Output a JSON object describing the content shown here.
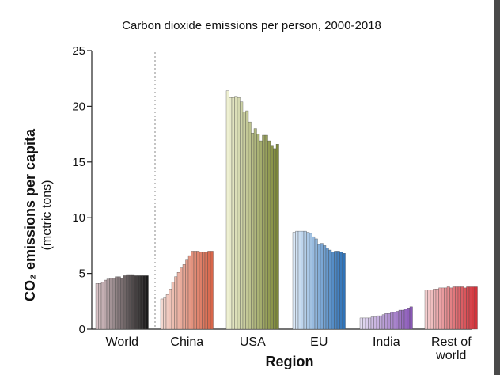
{
  "chart_data": {
    "type": "bar",
    "title": "Carbon dioxide emissions per person, 2000-2018",
    "xlabel": "Region",
    "ylabel": "CO₂ emissions per capita",
    "ylabel_sub": "(metric tons)",
    "ylim": [
      0,
      25
    ],
    "yticks": [
      "0",
      "5",
      "10",
      "15",
      "20",
      "25"
    ],
    "years": [
      2000,
      2001,
      2002,
      2003,
      2004,
      2005,
      2006,
      2007,
      2008,
      2009,
      2010,
      2011,
      2012,
      2013,
      2014,
      2015,
      2016,
      2017,
      2018
    ],
    "groups": [
      {
        "name": "World",
        "label_lines": [
          "World"
        ],
        "color_start": "#d9c2c6",
        "color_end": "#1a1a1a",
        "values": [
          4.1,
          4.1,
          4.2,
          4.4,
          4.5,
          4.6,
          4.6,
          4.7,
          4.7,
          4.6,
          4.8,
          4.9,
          4.9,
          4.9,
          4.8,
          4.8,
          4.8,
          4.8,
          4.8
        ]
      },
      {
        "name": "China",
        "label_lines": [
          "China"
        ],
        "color_start": "#f3d7cf",
        "color_end": "#d8664a",
        "values": [
          2.7,
          2.8,
          3.1,
          3.6,
          4.2,
          4.7,
          5.1,
          5.5,
          5.8,
          6.2,
          6.6,
          7.0,
          7.0,
          7.0,
          6.9,
          6.9,
          6.9,
          7.0,
          7.0
        ]
      },
      {
        "name": "USA",
        "label_lines": [
          "USA"
        ],
        "color_start": "#eef0d2",
        "color_end": "#7f8a3a",
        "values": [
          21.4,
          20.8,
          20.8,
          20.9,
          20.8,
          20.4,
          19.5,
          19.6,
          18.6,
          17.6,
          18.0,
          17.5,
          16.9,
          17.4,
          17.4,
          16.9,
          16.5,
          16.2,
          16.6
        ]
      },
      {
        "name": "EU",
        "label_lines": [
          "EU"
        ],
        "color_start": "#dbe9f7",
        "color_end": "#2f73b9",
        "values": [
          8.7,
          8.8,
          8.8,
          8.8,
          8.8,
          8.7,
          8.6,
          8.3,
          8.1,
          7.6,
          7.7,
          7.5,
          7.3,
          7.1,
          6.9,
          7.0,
          7.0,
          6.9,
          6.8
        ]
      },
      {
        "name": "India",
        "label_lines": [
          "India"
        ],
        "color_start": "#e4dcf2",
        "color_end": "#8a58b8",
        "values": [
          1.0,
          1.0,
          1.0,
          1.0,
          1.1,
          1.1,
          1.2,
          1.2,
          1.3,
          1.4,
          1.4,
          1.5,
          1.5,
          1.6,
          1.7,
          1.7,
          1.8,
          1.9,
          2.0
        ]
      },
      {
        "name": "Rest of world",
        "label_lines": [
          "Rest of",
          "world"
        ],
        "color_start": "#f4cfd0",
        "color_end": "#d2323a",
        "values": [
          3.5,
          3.5,
          3.5,
          3.6,
          3.6,
          3.7,
          3.7,
          3.7,
          3.8,
          3.7,
          3.8,
          3.8,
          3.8,
          3.8,
          3.7,
          3.8,
          3.8,
          3.8,
          3.8
        ]
      }
    ],
    "legend": "none",
    "grid": false,
    "separator_after": "World"
  }
}
